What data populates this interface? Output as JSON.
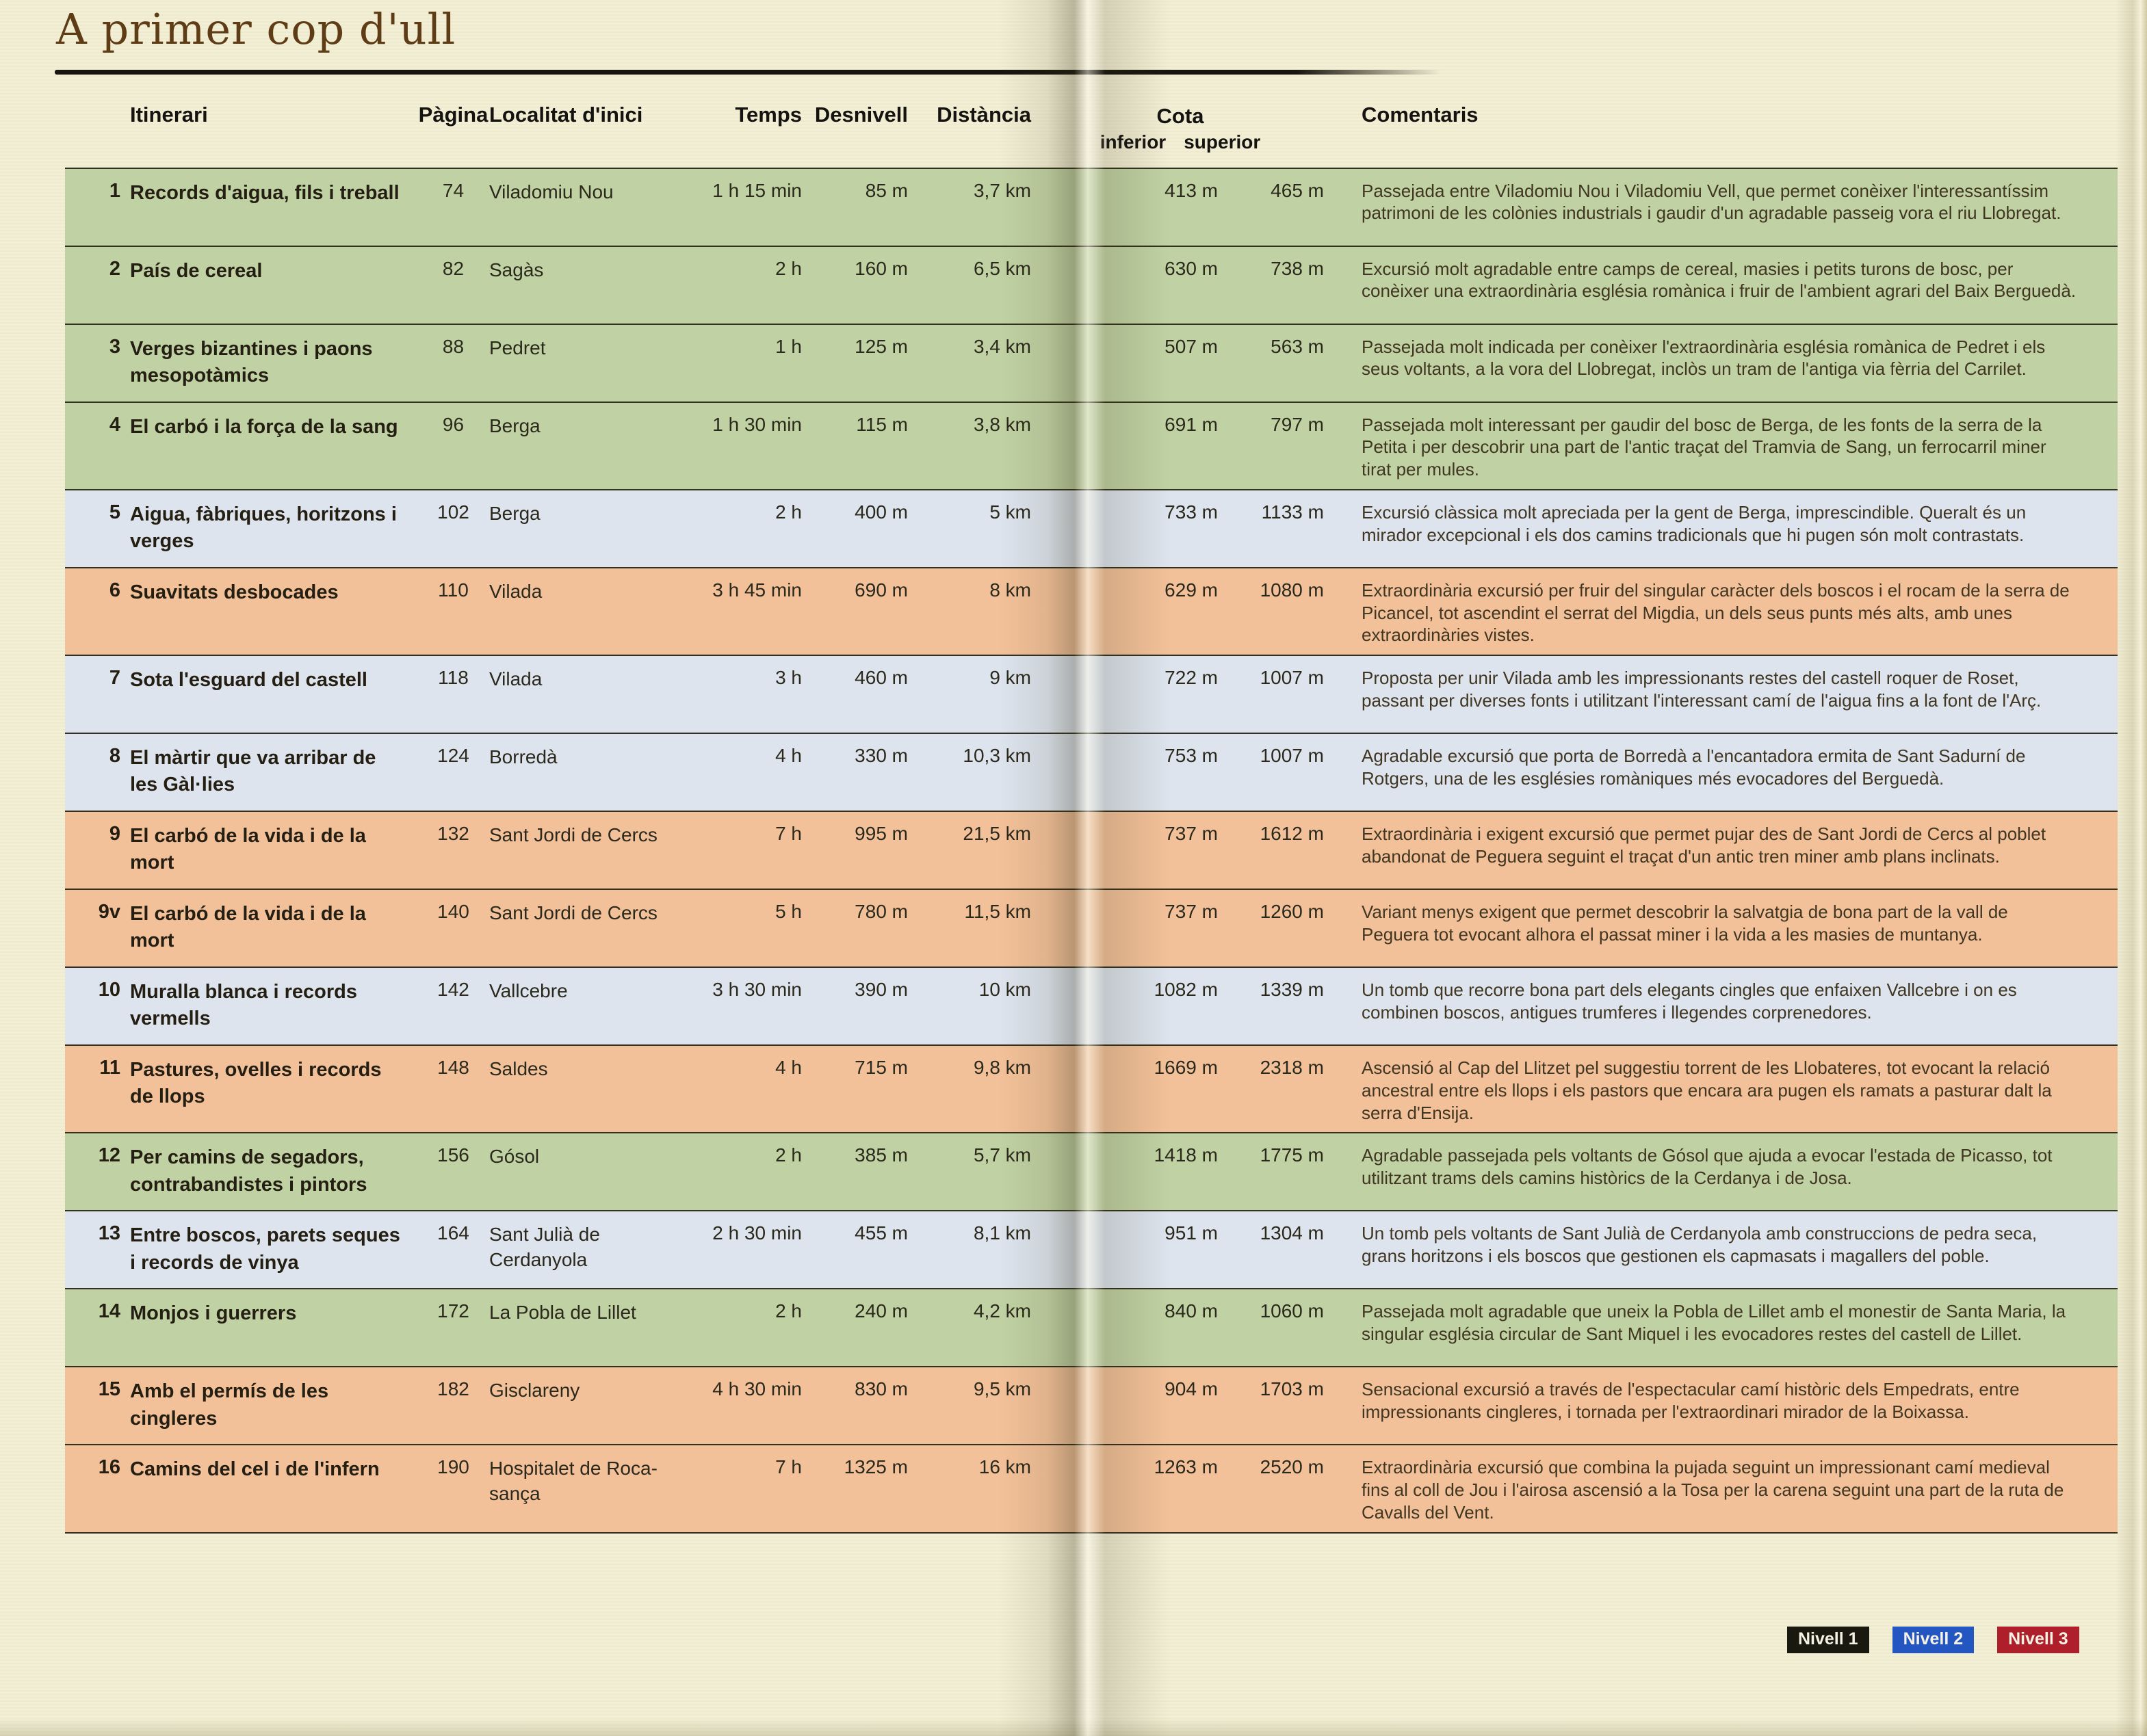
{
  "title": "A primer cop d'ull",
  "header": {
    "itinerari": "Itinerari",
    "pagina": "Pàgina",
    "localitat": "Localitat d'inici",
    "temps": "Temps",
    "desnivell": "Desnivell",
    "distancia": "Distància",
    "cota": "Cota",
    "cota_inferior": "inferior",
    "cota_superior": "superior",
    "comentaris": "Comentaris"
  },
  "level_colors": {
    "1": "#c0d2a3",
    "2": "#dde4ee",
    "3": "#f3c199"
  },
  "rows": [
    {
      "num": "1",
      "title": "Records d'aigua, fils i treball",
      "page": "74",
      "start": "Viladomiu Nou",
      "time": "1 h 15 min",
      "climb": "85 m",
      "dist": "3,7 km",
      "low": "413 m",
      "high": "465 m",
      "level": "1",
      "comment": "Passejada entre Viladomiu Nou i Viladomiu Vell, que permet conèixer l'interessantíssim patrimoni de les colònies industrials i gaudir d'un agradable passeig vora el riu Llobregat."
    },
    {
      "num": "2",
      "title": "País de cereal",
      "page": "82",
      "start": "Sagàs",
      "time": "2 h",
      "climb": "160 m",
      "dist": "6,5 km",
      "low": "630 m",
      "high": "738 m",
      "level": "1",
      "comment": "Excursió molt agradable entre camps de cereal, masies i petits turons de bosc, per conèixer una extraordinària església romànica i fruir de l'ambient agrari del Baix Berguedà."
    },
    {
      "num": "3",
      "title": "Verges bizantines i paons mesopotàmics",
      "page": "88",
      "start": "Pedret",
      "time": "1 h",
      "climb": "125 m",
      "dist": "3,4 km",
      "low": "507 m",
      "high": "563 m",
      "level": "1",
      "comment": "Passejada molt indicada per conèixer l'extraordinària església romànica de Pedret i els seus voltants, a la vora del Llobregat, inclòs un tram de l'antiga via fèrria del Carrilet."
    },
    {
      "num": "4",
      "title": "El carbó i la força de la sang",
      "page": "96",
      "start": "Berga",
      "time": "1 h 30 min",
      "climb": "115 m",
      "dist": "3,8 km",
      "low": "691 m",
      "high": "797 m",
      "level": "1",
      "comment": "Passejada molt interessant per gaudir del bosc de Berga, de les fonts de la serra de la Petita i per descobrir una part de l'antic traçat del Tramvia de Sang, un ferrocarril miner tirat per mules."
    },
    {
      "num": "5",
      "title": "Aigua, fàbriques, horitzons i verges",
      "page": "102",
      "start": "Berga",
      "time": "2 h",
      "climb": "400 m",
      "dist": "5 km",
      "low": "733 m",
      "high": "1133 m",
      "level": "2",
      "comment": "Excursió clàssica molt apreciada per la gent de Berga, imprescindible. Queralt és un mirador excepcional i els dos camins tradicionals que hi pugen són molt contrastats."
    },
    {
      "num": "6",
      "title": "Suavitats desbocades",
      "page": "110",
      "start": "Vilada",
      "time": "3 h 45 min",
      "climb": "690 m",
      "dist": "8 km",
      "low": "629 m",
      "high": "1080 m",
      "level": "3",
      "comment": "Extraordinària excursió per fruir del singular caràcter dels boscos i el rocam de la serra de Picancel, tot ascendint el serrat del Migdia, un dels seus punts més alts, amb unes extraordinàries vistes."
    },
    {
      "num": "7",
      "title": "Sota l'esguard del castell",
      "page": "118",
      "start": "Vilada",
      "time": "3 h",
      "climb": "460 m",
      "dist": "9 km",
      "low": "722 m",
      "high": "1007 m",
      "level": "2",
      "comment": "Proposta per unir Vilada amb les impressionants restes del castell roquer de Roset, passant per diverses fonts i utilitzant l'interessant camí de l'aigua fins a la font de l'Arç."
    },
    {
      "num": "8",
      "title": "El màrtir que va arribar de les Gàl·lies",
      "page": "124",
      "start": "Borredà",
      "time": "4 h",
      "climb": "330 m",
      "dist": "10,3 km",
      "low": "753 m",
      "high": "1007 m",
      "level": "2",
      "comment": "Agradable excursió que porta de Borredà a l'encantadora ermita de Sant Sadurní de Rotgers, una de les esglésies romàniques més evocadores del Berguedà."
    },
    {
      "num": "9",
      "title": "El carbó de la vida i de la mort",
      "page": "132",
      "start": "Sant Jordi de Cercs",
      "time": "7 h",
      "climb": "995 m",
      "dist": "21,5 km",
      "low": "737 m",
      "high": "1612 m",
      "level": "3",
      "comment": "Extraordinària i exigent excursió que permet pujar des de Sant Jordi de Cercs al poblet abandonat de Peguera seguint el traçat d'un antic tren miner amb plans inclinats."
    },
    {
      "num": "9v",
      "title": "El carbó de la vida i de la mort",
      "page": "140",
      "start": "Sant Jordi de Cercs",
      "time": "5 h",
      "climb": "780 m",
      "dist": "11,5 km",
      "low": "737 m",
      "high": "1260 m",
      "level": "3",
      "comment": "Variant menys exigent que permet descobrir la salvatgia de bona part de la vall de Peguera tot evocant alhora el passat miner i la vida a les masies de muntanya."
    },
    {
      "num": "10",
      "title": "Muralla blanca i records vermells",
      "page": "142",
      "start": "Vallcebre",
      "time": "3 h 30 min",
      "climb": "390 m",
      "dist": "10 km",
      "low": "1082 m",
      "high": "1339 m",
      "level": "2",
      "comment": "Un tomb que recorre bona part dels elegants cingles que enfaixen Vallcebre i on es combinen boscos, antigues trumferes i llegendes corprenedores."
    },
    {
      "num": "11",
      "title": "Pastures, ovelles i records de llops",
      "page": "148",
      "start": "Saldes",
      "time": "4 h",
      "climb": "715 m",
      "dist": "9,8 km",
      "low": "1669 m",
      "high": "2318 m",
      "level": "3",
      "comment": "Ascensió al Cap del Llitzet pel suggestiu torrent de les Llobateres, tot evocant la relació ancestral entre els llops i els pastors que encara ara pugen els ramats a pasturar dalt la serra d'Ensija."
    },
    {
      "num": "12",
      "title": "Per camins de segadors, contrabandistes i pintors",
      "page": "156",
      "start": "Gósol",
      "time": "2 h",
      "climb": "385 m",
      "dist": "5,7 km",
      "low": "1418 m",
      "high": "1775 m",
      "level": "1",
      "comment": "Agradable passejada pels voltants de Gósol que ajuda a evocar l'estada de Picasso, tot utilitzant trams dels camins històrics de la Cerdanya i de Josa."
    },
    {
      "num": "13",
      "title": "Entre boscos, parets seques i records de vinya",
      "page": "164",
      "start": "Sant Julià de Cerdanyola",
      "time": "2 h 30 min",
      "climb": "455 m",
      "dist": "8,1 km",
      "low": "951 m",
      "high": "1304 m",
      "level": "2",
      "comment": "Un tomb pels voltants de Sant Julià de Cerdanyola amb construccions de pedra seca, grans horitzons i els boscos que gestionen els capmasats i magallers del poble."
    },
    {
      "num": "14",
      "title": "Monjos i guerrers",
      "page": "172",
      "start": "La Pobla de Lillet",
      "time": "2 h",
      "climb": "240 m",
      "dist": "4,2 km",
      "low": "840 m",
      "high": "1060 m",
      "level": "1",
      "comment": "Passejada molt agradable que uneix la Pobla de Lillet amb el monestir de Santa Maria, la singular església circular de Sant Miquel i les evocadores restes del castell de Lillet."
    },
    {
      "num": "15",
      "title": "Amb el permís de les cingleres",
      "page": "182",
      "start": "Gisclareny",
      "time": "4 h 30 min",
      "climb": "830 m",
      "dist": "9,5 km",
      "low": "904 m",
      "high": "1703 m",
      "level": "3",
      "comment": "Sensacional excursió a través de l'espectacular camí històric dels Empedrats, entre impressionants cingleres, i tornada per l'extraordinari mirador de la Boixassa."
    },
    {
      "num": "16",
      "title": "Camins del cel i de l'infern",
      "page": "190",
      "start": "Hospitalet de Roca-sança",
      "time": "7 h",
      "climb": "1325 m",
      "dist": "16 km",
      "low": "1263 m",
      "high": "2520 m",
      "level": "3",
      "comment": "Extraordinària excursió que combina la pujada seguint un impressionant camí medieval fins al coll de Jou i l'airosa ascensió a la Tosa per la carena seguint una part de la ruta de Cavalls del Vent."
    }
  ],
  "legend": [
    {
      "label": "Nivell 1",
      "color": "#1a1910"
    },
    {
      "label": "Nivell 2",
      "color": "#2356c0"
    },
    {
      "label": "Nivell 3",
      "color": "#ae1f2b"
    }
  ]
}
